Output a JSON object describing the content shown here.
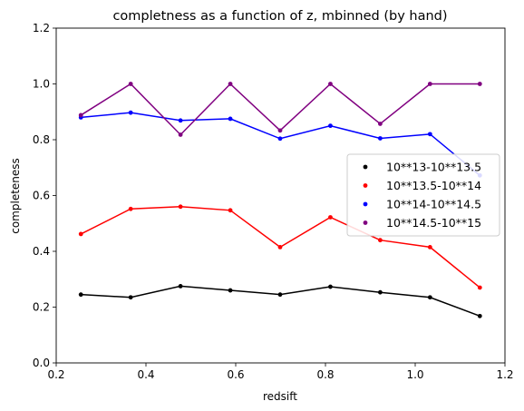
{
  "chart_data": {
    "type": "line",
    "title": "completness as a function of z, mbinned (by hand)",
    "xlabel": "redsift",
    "ylabel": "completeness",
    "xlim": [
      0.2,
      1.2
    ],
    "ylim": [
      0.0,
      1.2
    ],
    "xticks": [
      0.2,
      0.4,
      0.6,
      0.8,
      1.0,
      1.2
    ],
    "yticks": [
      0.0,
      0.2,
      0.4,
      0.6,
      0.8,
      1.0,
      1.2
    ],
    "xtick_labels": [
      "0.2",
      "0.4",
      "0.6",
      "0.8",
      "1.0",
      "1.2"
    ],
    "ytick_labels": [
      "0.0",
      "0.2",
      "0.4",
      "0.6",
      "0.8",
      "1.0",
      "1.2"
    ],
    "legend_position": "right",
    "x": [
      0.255,
      0.366,
      0.477,
      0.588,
      0.699,
      0.811,
      0.922,
      1.033,
      1.144
    ],
    "series": [
      {
        "name": "10**13-10**13.5",
        "color": "#000000",
        "values": [
          0.245,
          0.235,
          0.275,
          0.26,
          0.245,
          0.273,
          0.253,
          0.235,
          0.168
        ]
      },
      {
        "name": "10**13.5-10**14",
        "color": "#ff0000",
        "values": [
          0.462,
          0.552,
          0.56,
          0.547,
          0.415,
          0.522,
          0.44,
          0.415,
          0.27
        ]
      },
      {
        "name": "10**14-10**14.5",
        "color": "#0000ff",
        "values": [
          0.88,
          0.897,
          0.869,
          0.875,
          0.804,
          0.85,
          0.805,
          0.82,
          0.672
        ]
      },
      {
        "name": "10**14.5-10**15",
        "color": "#800080",
        "values": [
          0.888,
          1.0,
          0.818,
          1.0,
          0.833,
          1.0,
          0.857,
          1.0,
          1.0
        ]
      }
    ]
  }
}
